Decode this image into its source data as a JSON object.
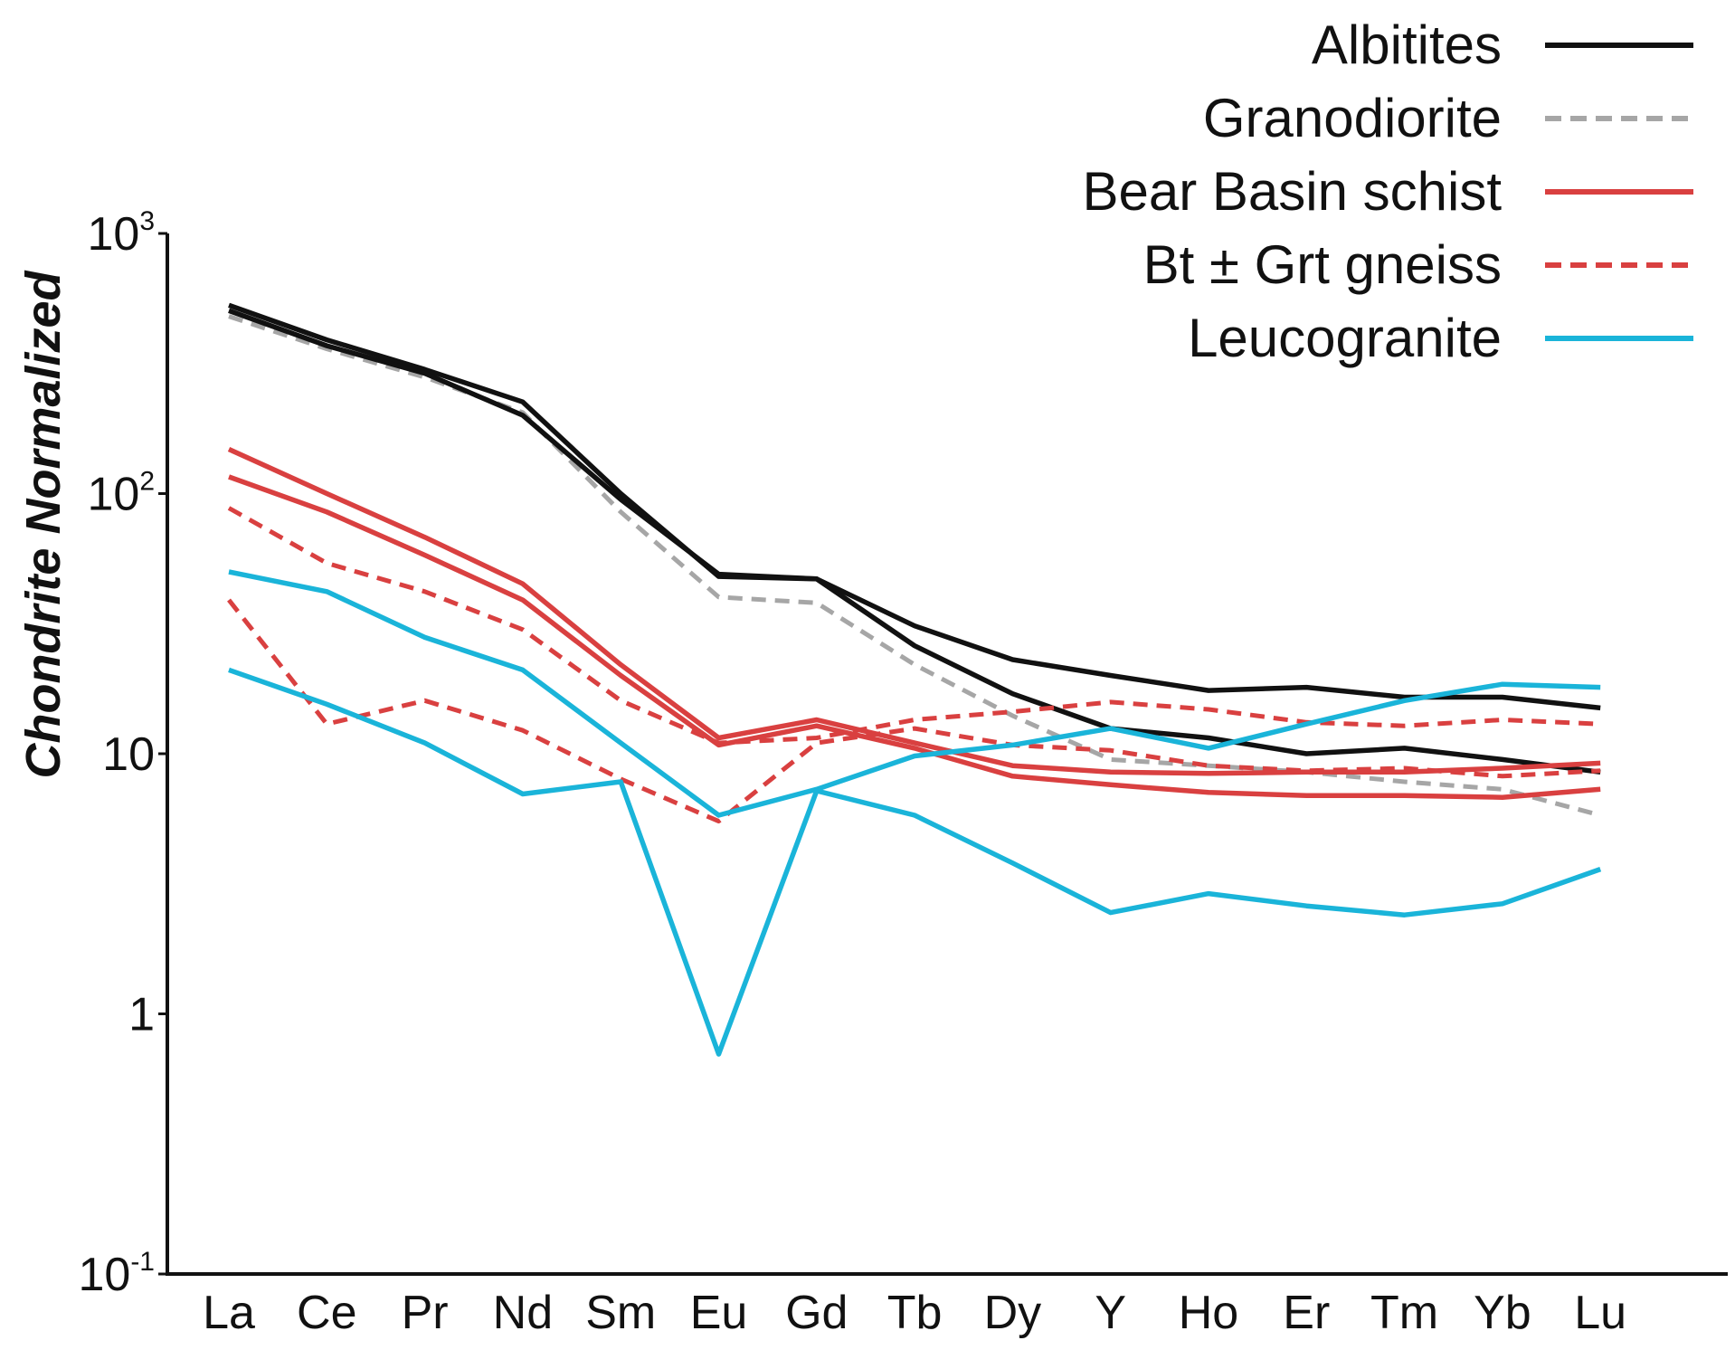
{
  "chart_data": {
    "type": "line",
    "ylabel": "Chondrite Normalized",
    "xlabel": "",
    "yscale": "log",
    "ylim": [
      0.1,
      1000
    ],
    "ytick_labels": [
      {
        "value": 1000,
        "base": "10",
        "exp": "3"
      },
      {
        "value": 100,
        "base": "10",
        "exp": "2"
      },
      {
        "value": 10,
        "base": "10",
        "exp": ""
      },
      {
        "value": 1,
        "base": "1",
        "exp": ""
      },
      {
        "value": 0.1,
        "base": "10",
        "exp": "-1"
      }
    ],
    "categories": [
      "La",
      "Ce",
      "Pr",
      "Nd",
      "Sm",
      "Eu",
      "Gd",
      "Tb",
      "Dy",
      "Y",
      "Ho",
      "Er",
      "Tm",
      "Yb",
      "Lu"
    ],
    "legend": [
      {
        "name": "Albitites",
        "color": "#111111",
        "dashed": false
      },
      {
        "name": "Granodiorite",
        "color": "#a6a6a6",
        "dashed": true
      },
      {
        "name": "Bear Basin schist",
        "color": "#d94040",
        "dashed": false
      },
      {
        "name": "Bt ± Grt gneiss",
        "color": "#d94040",
        "dashed": true
      },
      {
        "name": "Leucogranite",
        "color": "#1ab4d9",
        "dashed": false
      }
    ],
    "series": [
      {
        "name": "Granodiorite",
        "color": "#a6a6a6",
        "dashed": true,
        "values": [
          480,
          360,
          280,
          205,
          85,
          40,
          38,
          22,
          14,
          9.5,
          9,
          8.5,
          7.8,
          7.3,
          5.8
        ]
      },
      {
        "name": "Albitites",
        "color": "#111111",
        "dashed": false,
        "values": [
          530,
          390,
          300,
          225,
          100,
          48,
          47,
          31,
          23,
          20,
          17.5,
          18,
          16.5,
          16.5,
          15
        ]
      },
      {
        "name": "Albitites",
        "color": "#111111",
        "dashed": false,
        "values": [
          505,
          370,
          290,
          200,
          95,
          49,
          47,
          26,
          17,
          12.5,
          11.5,
          10,
          10.5,
          9.5,
          8.5
        ]
      },
      {
        "name": "Bear Basin schist",
        "color": "#d94040",
        "dashed": false,
        "values": [
          148,
          100,
          68,
          45,
          22,
          11.5,
          13.5,
          11,
          9,
          8.5,
          8.4,
          8.5,
          8.5,
          8.8,
          9.2
        ]
      },
      {
        "name": "Bear Basin schist",
        "color": "#d94040",
        "dashed": false,
        "values": [
          116,
          85,
          58,
          39,
          20,
          10.8,
          12.8,
          10.5,
          8.2,
          7.6,
          7.1,
          6.9,
          6.9,
          6.8,
          7.3
        ]
      },
      {
        "name": "Bt ± Grt gneiss",
        "color": "#d94040",
        "dashed": true,
        "values": [
          88,
          54,
          42,
          30,
          16,
          11,
          11.5,
          13.5,
          14.5,
          15.8,
          14.8,
          13.2,
          12.8,
          13.5,
          13
        ]
      },
      {
        "name": "Bt ± Grt gneiss",
        "color": "#d94040",
        "dashed": true,
        "values": [
          39,
          13,
          16,
          12.3,
          8,
          5.5,
          11,
          12.5,
          10.8,
          10.3,
          9,
          8.6,
          8.8,
          8.2,
          8.6
        ]
      },
      {
        "name": "Leucogranite",
        "color": "#1ab4d9",
        "dashed": false,
        "values": [
          50,
          42,
          28,
          21,
          11,
          5.8,
          7.3,
          9.8,
          10.8,
          12.5,
          10.5,
          13,
          16,
          18.5,
          18
        ]
      },
      {
        "name": "Leucogranite",
        "color": "#1ab4d9",
        "dashed": false,
        "values": [
          21,
          15.5,
          11,
          7,
          7.8,
          0.7,
          7.2,
          5.8,
          3.8,
          2.45,
          2.9,
          2.6,
          2.4,
          2.65,
          3.6
        ]
      }
    ]
  }
}
